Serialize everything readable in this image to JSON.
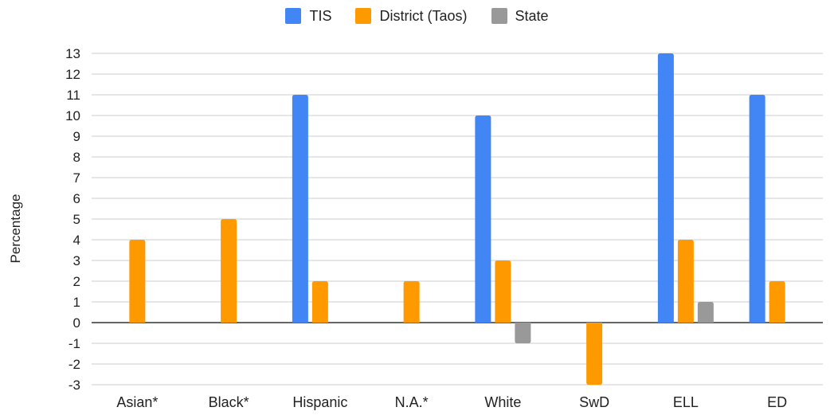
{
  "chart_data": {
    "type": "bar",
    "categories": [
      "Asian*",
      "Black*",
      "Hispanic",
      "N.A.*",
      "White",
      "SwD",
      "ELL",
      "ED"
    ],
    "series": [
      {
        "name": "TIS",
        "color": "#4285f4",
        "values": [
          null,
          null,
          11,
          null,
          10,
          null,
          13,
          11
        ]
      },
      {
        "name": "District (Taos)",
        "color": "#ff9900",
        "values": [
          4,
          5,
          2,
          2,
          3,
          -3,
          4,
          2
        ]
      },
      {
        "name": "State",
        "color": "#999999",
        "values": [
          null,
          null,
          null,
          null,
          -1,
          null,
          1,
          null
        ]
      }
    ],
    "ylabel": "Percentage",
    "xlabel": "",
    "ylim": [
      -3,
      13
    ],
    "yticks": [
      -3,
      -2,
      -1,
      0,
      1,
      2,
      3,
      4,
      5,
      6,
      7,
      8,
      9,
      10,
      11,
      12,
      13
    ],
    "grid": true,
    "legend_position": "top-center"
  }
}
